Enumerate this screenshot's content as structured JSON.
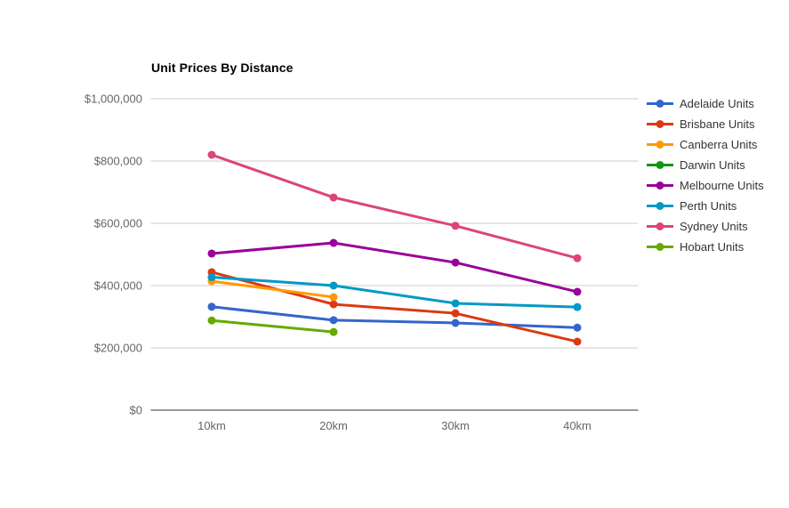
{
  "chart_data": {
    "type": "line",
    "title": "Unit Prices By Distance",
    "xlabel": "",
    "ylabel": "",
    "x_categories": [
      "10km",
      "20km",
      "30km",
      "40km"
    ],
    "ylim": [
      0,
      1000000
    ],
    "grid": true,
    "legend_position": "right",
    "y_ticks": [
      {
        "value": 0,
        "label": "$0"
      },
      {
        "value": 200000,
        "label": "$200,000"
      },
      {
        "value": 400000,
        "label": "$400,000"
      },
      {
        "value": 600000,
        "label": "$600,000"
      },
      {
        "value": 800000,
        "label": "$800,000"
      },
      {
        "value": 1000000,
        "label": "$1,000,000"
      }
    ],
    "series": [
      {
        "name": "Adelaide Units",
        "color": "#3366cc",
        "values": [
          332000,
          289000,
          280000,
          265000
        ]
      },
      {
        "name": "Brisbane Units",
        "color": "#dc3912",
        "values": [
          443000,
          340000,
          311000,
          220000
        ]
      },
      {
        "name": "Canberra Units",
        "color": "#ff9900",
        "values": [
          414000,
          363000,
          null,
          null
        ]
      },
      {
        "name": "Darwin Units",
        "color": "#109618",
        "values": [
          null,
          null,
          null,
          null
        ]
      },
      {
        "name": "Melbourne Units",
        "color": "#990099",
        "values": [
          503000,
          537000,
          474000,
          380000
        ]
      },
      {
        "name": "Perth Units",
        "color": "#0099c6",
        "values": [
          427000,
          400000,
          343000,
          331000
        ]
      },
      {
        "name": "Sydney Units",
        "color": "#dd4477",
        "values": [
          820000,
          683000,
          592000,
          488000
        ]
      },
      {
        "name": "Hobart Units",
        "color": "#66aa00",
        "values": [
          288000,
          251000,
          null,
          null
        ]
      }
    ],
    "style": {
      "gridline_color": "#cccccc",
      "baseline_color": "#333333",
      "axis_label_color": "#666666",
      "legend_text_color": "#333333",
      "background": "#ffffff"
    }
  }
}
